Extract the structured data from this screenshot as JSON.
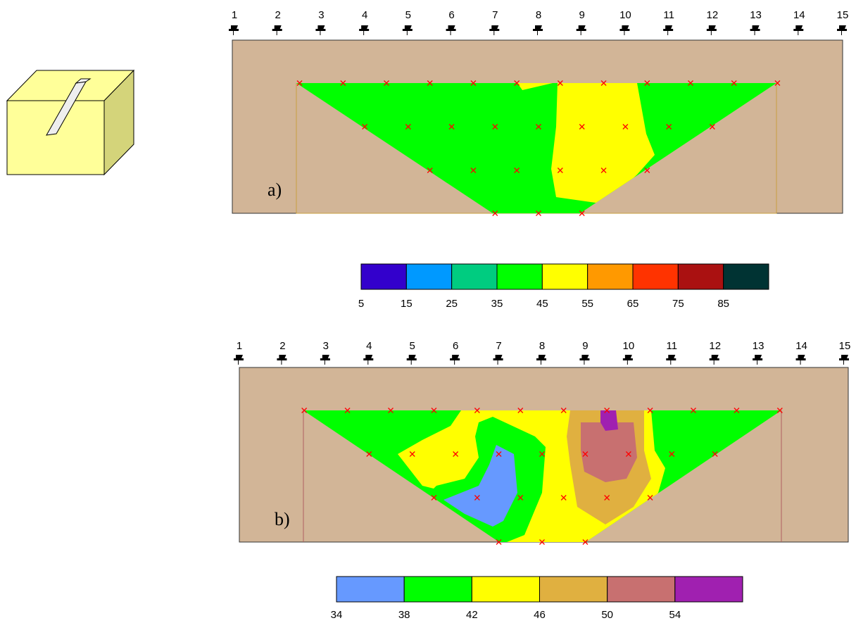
{
  "panel_a": {
    "label": "a)",
    "electrodes": [
      1,
      2,
      3,
      4,
      5,
      6,
      7,
      8,
      9,
      10,
      11,
      12,
      13,
      14,
      15
    ]
  },
  "colorbar_a": {
    "ticks": [
      5,
      15,
      25,
      35,
      45,
      55,
      65,
      75,
      85
    ],
    "colors": [
      "#3300cc",
      "#0099ff",
      "#00cc80",
      "#00ff00",
      "#ffff00",
      "#ff9900",
      "#ff3300",
      "#aa1111",
      "#003333"
    ]
  },
  "panel_b": {
    "label": "b)",
    "electrodes": [
      1,
      2,
      3,
      4,
      5,
      6,
      7,
      8,
      9,
      10,
      11,
      12,
      13,
      14,
      15
    ]
  },
  "colorbar_b": {
    "ticks": [
      34,
      38,
      42,
      46,
      50,
      54
    ],
    "colors": [
      "#6699ff",
      "#00ff00",
      "#ffff00",
      "#e0b040",
      "#c87070",
      "#a020b0"
    ]
  }
}
